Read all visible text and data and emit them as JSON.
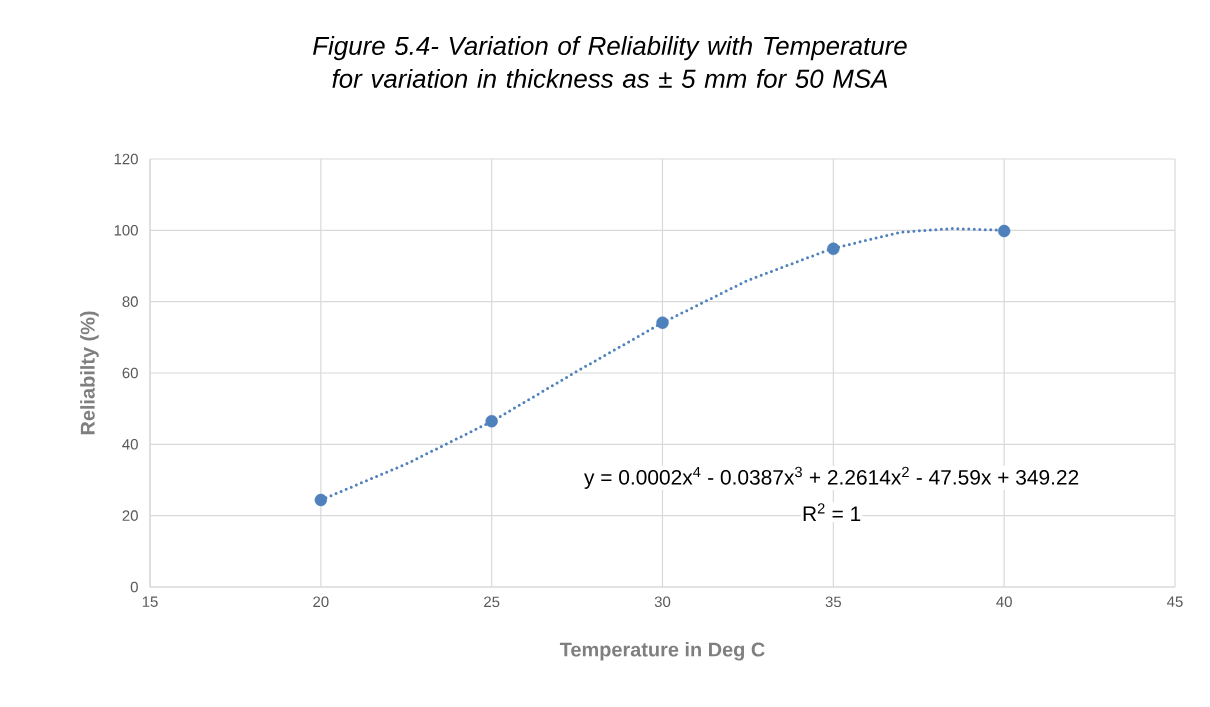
{
  "chart_data": {
    "type": "scatter",
    "title": "Figure 5.4- Variation of Reliability with Temperature for variation in thickness as ± 5 mm for 50 MSA",
    "xlabel": "Temperature in Deg C",
    "ylabel": "Reliabilty (%)",
    "xlim": [
      15,
      45
    ],
    "xticks": [
      15,
      20,
      25,
      30,
      35,
      40,
      45
    ],
    "ylim": [
      0,
      120
    ],
    "yticks": [
      0,
      20,
      40,
      60,
      80,
      100,
      120
    ],
    "grid": true,
    "series": [
      {
        "type": "line",
        "color": "#4f81bd",
        "line_style": "dotted",
        "marker": "none",
        "x": [
          20,
          22.5,
          25,
          27.5,
          30,
          32.5,
          35,
          37,
          38.5,
          40
        ],
        "values": [
          24.4,
          34.5,
          46.4,
          60.5,
          74.1,
          86,
          95,
          99.5,
          100.5,
          100
        ]
      },
      {
        "color": "#4f81bd",
        "marker": "circle",
        "x": [
          20,
          25,
          30,
          35,
          40
        ],
        "values": [
          24.4,
          46.5,
          74.1,
          94.8,
          99.8
        ]
      }
    ],
    "annotations": [
      "y = 0.0002x$^{4}$ - 0.0387x$^{3}$ + 2.2614x$^{2}$ - 47.59x + 349.22",
      "R$^{2}$ = 1"
    ]
  }
}
